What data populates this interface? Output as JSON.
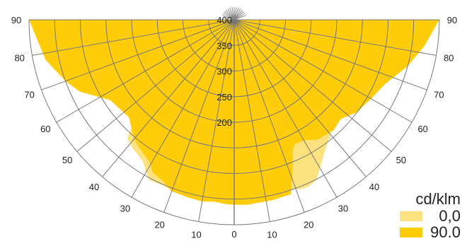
{
  "chart_data": {
    "type": "polar-area",
    "units": "cd/klm",
    "radial_ticks": [
      "200",
      "250",
      "300",
      "350",
      "400"
    ],
    "radial_tick_values": [
      200,
      250,
      300,
      350,
      400
    ],
    "radial_max": 400,
    "angle_ticks_left": [
      "90",
      "80",
      "70",
      "60",
      "50",
      "40",
      "30",
      "20",
      "10"
    ],
    "angle_ticks_right": [
      "90",
      "80",
      "70",
      "60",
      "50",
      "40",
      "30",
      "20",
      "10"
    ],
    "angle_tick_values": [
      90,
      80,
      70,
      60,
      50,
      40,
      30,
      20,
      10
    ],
    "zero_label": "0",
    "series": [
      {
        "name": "0,0",
        "color": "#fbe27e",
        "points": [
          [
            -90,
            0
          ],
          [
            -85,
            128
          ],
          [
            -80,
            232
          ],
          [
            -75,
            298
          ],
          [
            -72,
            300
          ],
          [
            -70,
            318
          ],
          [
            -68,
            322
          ],
          [
            -66,
            318
          ],
          [
            -63,
            320
          ],
          [
            -60,
            280
          ],
          [
            -57,
            232
          ],
          [
            -54,
            218
          ],
          [
            -51,
            210
          ],
          [
            -48,
            170
          ],
          [
            -45,
            124
          ],
          [
            -42,
            88
          ],
          [
            -38,
            80
          ],
          [
            -33,
            72
          ],
          [
            -28,
            46
          ],
          [
            -24,
            48
          ],
          [
            -20,
            46
          ],
          [
            -16,
            44
          ],
          [
            -12,
            44
          ],
          [
            -8,
            42
          ],
          [
            -4,
            43
          ],
          [
            0,
            43
          ],
          [
            4,
            42
          ],
          [
            8,
            46
          ],
          [
            12,
            52
          ],
          [
            16,
            58
          ],
          [
            19,
            50
          ],
          [
            22,
            44
          ],
          [
            24,
            44
          ],
          [
            27,
            48
          ],
          [
            30,
            66
          ],
          [
            34,
            86
          ],
          [
            40,
            108
          ],
          [
            44,
            132
          ],
          [
            48,
            172
          ],
          [
            52,
            148
          ],
          [
            55,
            140
          ],
          [
            57,
            164
          ],
          [
            60,
            218
          ],
          [
            64,
            268
          ],
          [
            68,
            282
          ],
          [
            72,
            292
          ],
          [
            76,
            298
          ],
          [
            80,
            200
          ],
          [
            85,
            118
          ],
          [
            90,
            0
          ]
        ]
      },
      {
        "name": "90.0",
        "color": "#fecc09",
        "points": [
          [
            -90,
            0
          ],
          [
            -78,
            24
          ],
          [
            -70,
            50
          ],
          [
            -65,
            68
          ],
          [
            -57,
            112
          ],
          [
            -47,
            120
          ],
          [
            -40,
            96
          ],
          [
            -34,
            84
          ],
          [
            -31,
            78
          ],
          [
            -28,
            62
          ],
          [
            -24,
            56
          ],
          [
            -20,
            44
          ],
          [
            -15,
            42
          ],
          [
            -10,
            40
          ],
          [
            -6,
            43
          ],
          [
            -3,
            40
          ],
          [
            0,
            39
          ],
          [
            4,
            38
          ],
          [
            8,
            40
          ],
          [
            12,
            40
          ],
          [
            16,
            42
          ],
          [
            18,
            42
          ],
          [
            20,
            70
          ],
          [
            22,
            94
          ],
          [
            24,
            120
          ],
          [
            26,
            130
          ],
          [
            30,
            128
          ],
          [
            35,
            115
          ],
          [
            42,
            110
          ],
          [
            47,
            116
          ],
          [
            53,
            100
          ],
          [
            60,
            92
          ],
          [
            67,
            80
          ],
          [
            75,
            50
          ],
          [
            82,
            26
          ],
          [
            90,
            0
          ]
        ]
      }
    ],
    "legend_position": "bottom-right"
  }
}
